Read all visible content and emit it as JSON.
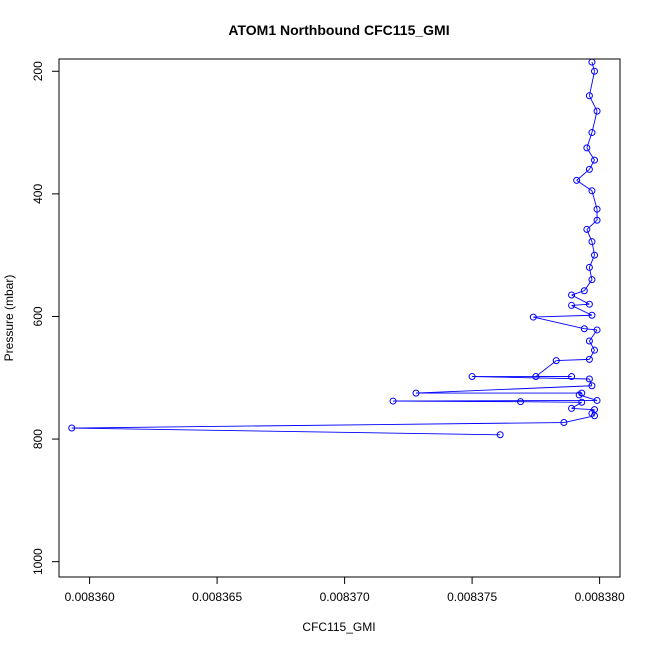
{
  "chart_data": {
    "type": "scatter",
    "title": "ATOM1 Northbound CFC115_GMI",
    "xlabel": "CFC115_GMI",
    "ylabel": "Pressure (mbar)",
    "xlim": [
      0.0083588,
      0.0083808
    ],
    "ylim": [
      1025,
      180
    ],
    "y_reversed": true,
    "grid": false,
    "color": "#0000ff",
    "x_ticks": [
      {
        "value": 0.00836,
        "label": "0.008360"
      },
      {
        "value": 0.008365,
        "label": "0.008365"
      },
      {
        "value": 0.00837,
        "label": "0.008370"
      },
      {
        "value": 0.008375,
        "label": "0.008375"
      },
      {
        "value": 0.00838,
        "label": "0.008380"
      }
    ],
    "y_ticks": [
      {
        "value": 200,
        "label": "200"
      },
      {
        "value": 400,
        "label": "400"
      },
      {
        "value": 600,
        "label": "600"
      },
      {
        "value": 800,
        "label": "800"
      },
      {
        "value": 1000,
        "label": "1000"
      }
    ],
    "series": [
      {
        "points": [
          [
            0.0083797,
            185
          ],
          [
            0.0083798,
            200
          ],
          [
            0.0083796,
            240
          ],
          [
            0.0083799,
            265
          ],
          [
            0.0083797,
            300
          ],
          [
            0.0083795,
            325
          ],
          [
            0.0083798,
            345
          ],
          [
            0.0083796,
            360
          ],
          [
            0.0083791,
            378
          ],
          [
            0.0083797,
            395
          ],
          [
            0.0083799,
            425
          ],
          [
            0.0083799,
            443
          ],
          [
            0.0083795,
            458
          ],
          [
            0.0083797,
            478
          ],
          [
            0.0083798,
            500
          ],
          [
            0.0083796,
            520
          ],
          [
            0.0083797,
            540
          ],
          [
            0.0083794,
            558
          ],
          [
            0.0083789,
            565
          ],
          [
            0.0083796,
            580
          ],
          [
            0.0083789,
            582
          ],
          [
            0.0083797,
            598
          ],
          [
            0.0083774,
            601
          ],
          [
            0.0083794,
            620
          ],
          [
            0.0083799,
            622
          ],
          [
            0.0083796,
            640
          ],
          [
            0.0083798,
            655
          ],
          [
            0.0083796,
            670
          ],
          [
            0.0083783,
            672
          ],
          [
            0.0083775,
            698
          ],
          [
            0.0083789,
            698
          ],
          [
            0.008375,
            698
          ],
          [
            0.0083796,
            702
          ],
          [
            0.0083797,
            713
          ],
          [
            0.0083728,
            725
          ],
          [
            0.0083793,
            725
          ],
          [
            0.0083792,
            728
          ],
          [
            0.0083799,
            737
          ],
          [
            0.0083719,
            738
          ],
          [
            0.0083769,
            739
          ],
          [
            0.0083793,
            740
          ],
          [
            0.0083789,
            750
          ],
          [
            0.0083798,
            752
          ],
          [
            0.0083797,
            758
          ],
          [
            0.0083798,
            762
          ],
          [
            0.0083786,
            773
          ],
          [
            0.0083593,
            782
          ],
          [
            0.0083761,
            793
          ]
        ]
      }
    ]
  }
}
